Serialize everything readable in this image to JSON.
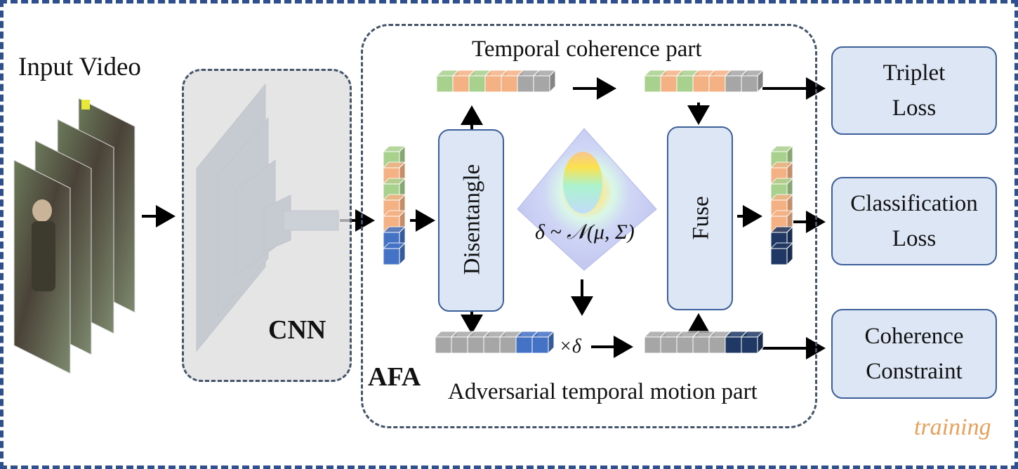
{
  "labels": {
    "input_video": "Input Video",
    "cnn": "CNN",
    "afa": "AFA",
    "temporal_coherence": "Temporal coherence part",
    "adversarial_motion": "Adversarial temporal motion part",
    "disentangle": "Disentangle",
    "fuse": "Fuse",
    "distribution": "δ ~ 𝒩(μ, Σ)",
    "times_delta": "×δ",
    "training": "training"
  },
  "outputs": [
    {
      "line1": "Triplet",
      "line2": "Loss"
    },
    {
      "line1": "Classification",
      "line2": "Loss"
    },
    {
      "line1": "Coherence",
      "line2": "Constraint"
    }
  ],
  "colors": {
    "frame": "#2f4f8f",
    "node_fill": "#dce6f5",
    "node_border": "#3d5f99",
    "green": "#a9d18e",
    "orange": "#f4b183",
    "gray": "#a6a6a6",
    "blue": "#4472c4",
    "navy": "#1f3864",
    "training": "#e8a05c"
  },
  "feature_vectors": {
    "input": [
      "green",
      "orange",
      "green",
      "orange",
      "orange",
      "blue",
      "blue"
    ],
    "coherence_top": [
      "green",
      "orange",
      "green",
      "orange",
      "orange",
      "gray",
      "gray"
    ],
    "coherence_fused": [
      "green",
      "orange",
      "green",
      "orange",
      "orange",
      "gray",
      "gray"
    ],
    "motion": [
      "gray",
      "gray",
      "gray",
      "gray",
      "gray",
      "blue",
      "blue"
    ],
    "motion_scaled": [
      "gray",
      "gray",
      "gray",
      "gray",
      "gray",
      "navy",
      "navy"
    ],
    "output": [
      "green",
      "orange",
      "green",
      "orange",
      "orange",
      "navy",
      "navy"
    ]
  }
}
